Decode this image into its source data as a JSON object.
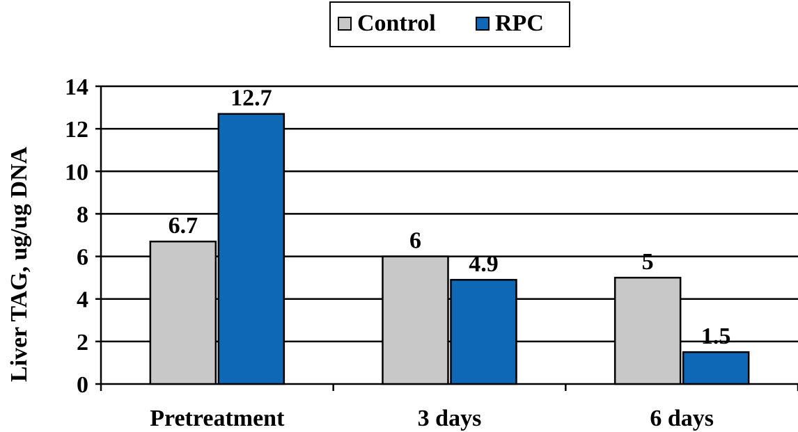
{
  "chart_data": {
    "type": "bar",
    "categories": [
      "Pretreatment",
      "3 days",
      "6 days"
    ],
    "series": [
      {
        "name": "Control",
        "values": [
          6.7,
          6,
          5
        ],
        "labels": [
          "6.7",
          "6",
          "5"
        ],
        "color": "#c8c8c8"
      },
      {
        "name": "RPC",
        "values": [
          12.7,
          4.9,
          1.5
        ],
        "labels": [
          "12.7",
          "4.9",
          "1.5"
        ],
        "color": "#0f68b6"
      }
    ],
    "title": "",
    "xlabel": "",
    "ylabel": "Liver TAG, ug/ug DNA",
    "ylim": [
      0,
      14
    ],
    "yticks": [
      "0",
      "2",
      "4",
      "6",
      "8",
      "10",
      "12",
      "14"
    ],
    "grid": true,
    "legend_position": "top-center"
  }
}
